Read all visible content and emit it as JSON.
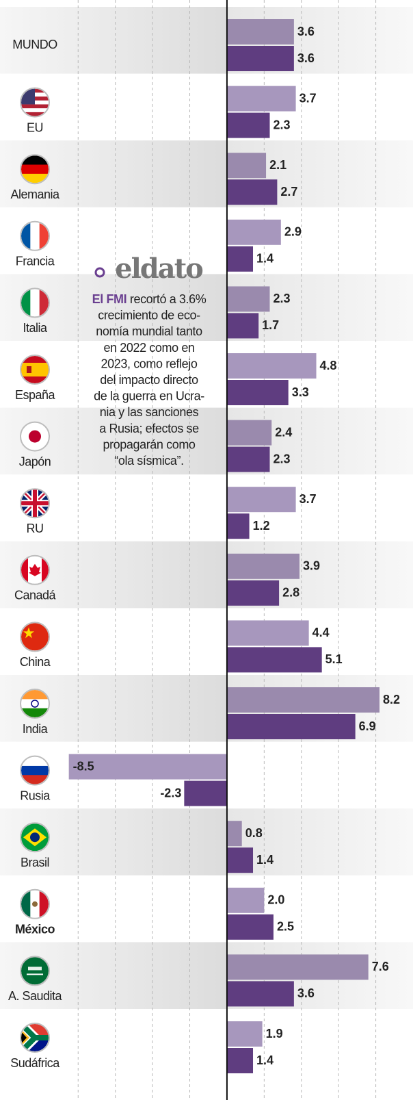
{
  "chart_data": {
    "type": "bar",
    "orientation": "horizontal",
    "categories": [
      "MUNDO",
      "EU",
      "Alemania",
      "Francia",
      "Italia",
      "España",
      "Japón",
      "RU",
      "Canadá",
      "China",
      "India",
      "Rusia",
      "Brasil",
      "México",
      "A. Saudita",
      "Sudáfrica"
    ],
    "series": [
      {
        "color": "#a797bd",
        "values": [
          3.6,
          3.7,
          2.1,
          2.9,
          2.3,
          4.8,
          2.4,
          3.7,
          3.9,
          4.4,
          8.2,
          -8.5,
          0.8,
          2.0,
          7.6,
          1.9
        ],
        "value_labels": [
          "3.6",
          "3.7",
          "2.1",
          "2.9",
          "2.3",
          "4.8",
          "2.4",
          "3.7",
          "3.9",
          "4.4",
          "8.2",
          "-8.5",
          "0.8",
          "2.0",
          "7.6",
          "1.9"
        ]
      },
      {
        "color": "#5f3d80",
        "values": [
          3.6,
          2.3,
          2.7,
          1.4,
          1.7,
          3.3,
          2.3,
          1.2,
          2.8,
          5.1,
          6.9,
          -2.3,
          1.4,
          2.5,
          3.6,
          1.4
        ],
        "value_labels": [
          "3.6",
          "2.3",
          "2.7",
          "1.4",
          "1.7",
          "3.3",
          "2.3",
          "1.2",
          "2.8",
          "5.1",
          "6.9",
          "-2.3",
          "1.4",
          "2.5",
          "3.6",
          "1.4"
        ]
      }
    ],
    "xlim": [
      -12.2,
      10
    ],
    "xticks": [
      -8,
      -6,
      -4,
      -2,
      2,
      4,
      6,
      8
    ],
    "grid": true,
    "highlight_category": "México",
    "annotation": {
      "logo": "eldato",
      "lead": "El FMI",
      "lines": [
        "recortó a 3.6%",
        "crecimiento de eco-",
        "nomía mundial tanto",
        "en 2022 como en",
        "2023, como reflejo",
        "del impacto directo",
        "de la guerra en Ucra-",
        "nia y las sanciones",
        "a Rusia; efectos se",
        "propagarán como",
        "“ola sísmica”."
      ]
    }
  }
}
